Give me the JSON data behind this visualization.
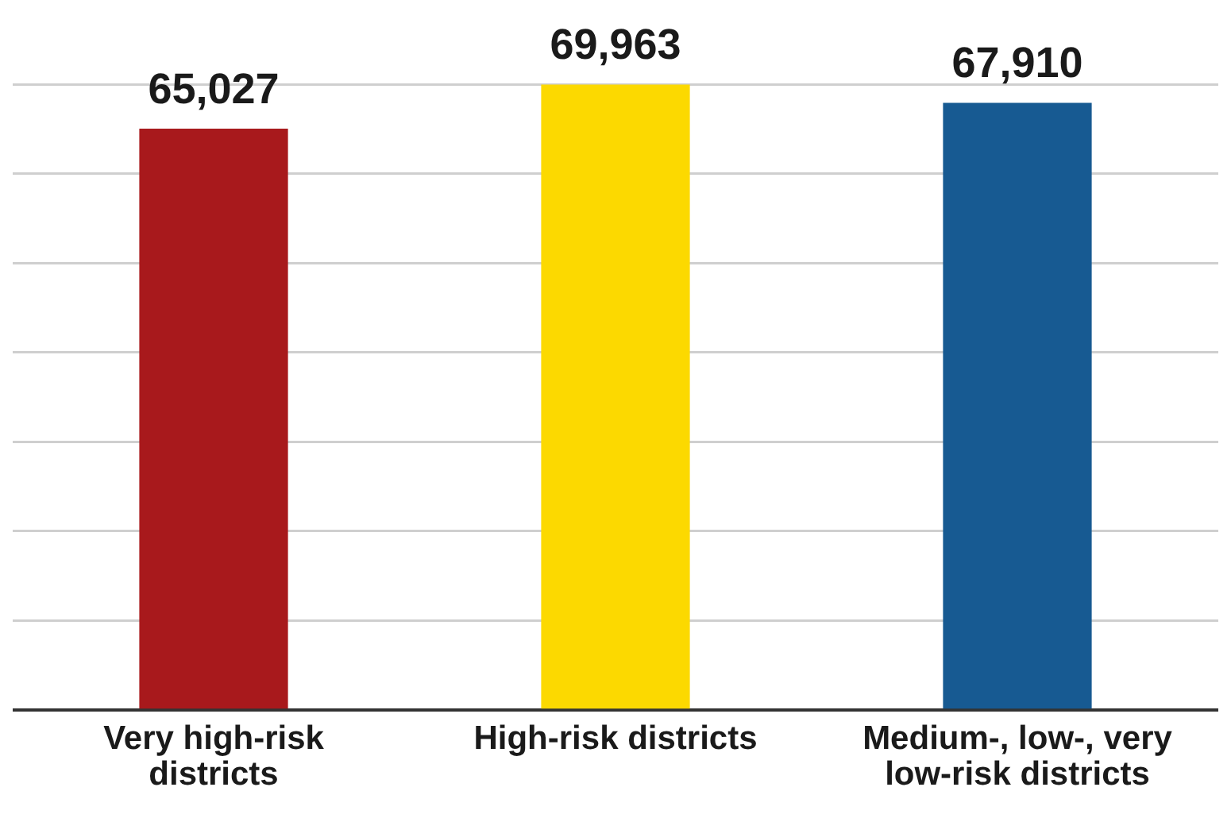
{
  "chart_data": {
    "type": "bar",
    "categories": [
      "Very high-risk districts",
      "High-risk districts",
      "Medium-, low-, very low-risk districts"
    ],
    "values": [
      65027,
      69963,
      67910
    ],
    "colors": [
      "#a8191c",
      "#fcd900",
      "#175a92"
    ],
    "value_labels": [
      "65,027",
      "69,963",
      "67,910"
    ],
    "grid": "y",
    "tick_labels": "x"
  }
}
